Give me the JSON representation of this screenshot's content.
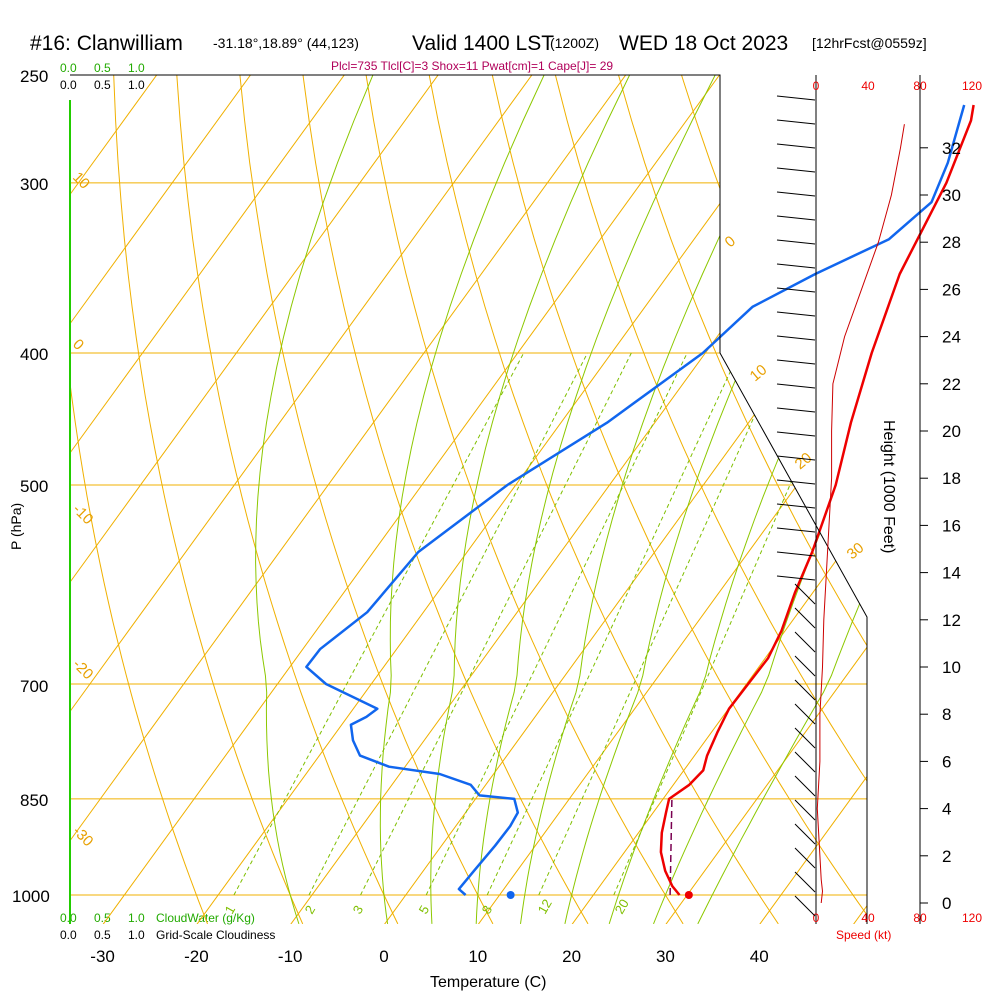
{
  "header": {
    "station": "#16: Clanwilliam",
    "coords": "-31.18°,18.89° (44,123)",
    "valid": "Valid 1400 LST",
    "zulu": "(1200Z)",
    "date": "WED 18 Oct 2023",
    "forecast": "[12hrFcst@0559z]"
  },
  "indices": "Plcl=735 Tlcl[C]=3 Shox=11 Pwat[cm]=1 Cape[J]= 29",
  "legends": {
    "cloudwater_top": [
      "0.0",
      "0.5",
      "1.0"
    ],
    "cloudiness_top": [
      "0.0",
      "0.5",
      "1.0"
    ],
    "cloudwater_bottom": [
      "0.0",
      "0.5",
      "1.0"
    ],
    "cloudwater_label": "CloudWater (g/Kg)",
    "cloudiness_bottom": [
      "0.0",
      "0.5",
      "1.0"
    ],
    "cloudiness_label": "Grid-Scale Cloudiness",
    "speed_label": "Speed (kt)"
  },
  "colors": {
    "isotherm": "#f0b000",
    "mixing": "#7fbf00",
    "adiabat": "#8cc800",
    "temperature": "#ee0000",
    "dewpoint": "#1166ee",
    "speed_line": "#cc0000",
    "parcel": "#7a0050"
  },
  "chart_data": {
    "type": "skew-t",
    "xlabel": "Temperature (C)",
    "ylabel": "P (hPa)",
    "y2label": "Height (1000 Feet)",
    "x_ticks": [
      "-30",
      "-20",
      "-10",
      "0",
      "10",
      "20",
      "30",
      "40"
    ],
    "y_ticks": [
      "250",
      "300",
      "400",
      "500",
      "700",
      "850",
      "1000"
    ],
    "height_ticks": [
      "0",
      "2",
      "4",
      "6",
      "8",
      "10",
      "12",
      "14",
      "16",
      "18",
      "20",
      "22",
      "24",
      "26",
      "28",
      "30",
      "32"
    ],
    "speed_ticks": [
      "0",
      "40",
      "80",
      "120"
    ],
    "isotherm_labels": [
      "0",
      "10",
      "20",
      "30"
    ],
    "left_labels": [
      "10",
      "0",
      "-10",
      "-20",
      "-30"
    ],
    "mixing_labels": [
      "1",
      "2",
      "3",
      "5",
      "8",
      "12",
      "20"
    ],
    "temperature_profile": [
      [
        1000,
        31.5
      ],
      [
        985,
        30.0
      ],
      [
        960,
        28.0
      ],
      [
        930,
        26.0
      ],
      [
        900,
        24.5
      ],
      [
        870,
        23.3
      ],
      [
        850,
        22.5
      ],
      [
        830,
        23.5
      ],
      [
        810,
        23.8
      ],
      [
        790,
        23.0
      ],
      [
        760,
        22.2
      ],
      [
        730,
        21.5
      ],
      [
        700,
        21.5
      ],
      [
        670,
        21.5
      ],
      [
        640,
        20.7
      ],
      [
        600,
        19.0
      ],
      [
        560,
        17.5
      ],
      [
        500,
        14.5
      ],
      [
        450,
        11.0
      ],
      [
        400,
        7.5
      ],
      [
        350,
        4.0
      ],
      [
        300,
        1.5
      ],
      [
        270,
        -1.0
      ],
      [
        263,
        -2.0
      ]
    ],
    "dewpoint_profile": [
      [
        1000,
        8.7
      ],
      [
        990,
        7.5
      ],
      [
        960,
        7.6
      ],
      [
        920,
        7.8
      ],
      [
        890,
        7.8
      ],
      [
        870,
        7.5
      ],
      [
        850,
        6.0
      ],
      [
        845,
        2.0
      ],
      [
        830,
        0.2
      ],
      [
        815,
        -4.0
      ],
      [
        805,
        -10.0
      ],
      [
        790,
        -14.0
      ],
      [
        770,
        -16.0
      ],
      [
        750,
        -17.5
      ],
      [
        740,
        -16.5
      ],
      [
        730,
        -16.0
      ],
      [
        700,
        -23.5
      ],
      [
        680,
        -27.0
      ],
      [
        660,
        -27.0
      ],
      [
        620,
        -25.0
      ],
      [
        560,
        -24.5
      ],
      [
        500,
        -20.5
      ],
      [
        450,
        -15.0
      ],
      [
        400,
        -10.5
      ],
      [
        370,
        -9.0
      ],
      [
        350,
        -5.0
      ],
      [
        330,
        0.0
      ],
      [
        310,
        1.5
      ],
      [
        290,
        0.0
      ],
      [
        263,
        -3.0
      ]
    ],
    "parcel_path": [
      [
        1000,
        30.5
      ],
      [
        850,
        22.8
      ]
    ],
    "surface_temperature": 32.5,
    "surface_dewpoint": 13.5,
    "wind_speed_profile_kt": [
      [
        0.0,
        4
      ],
      [
        0.5,
        5
      ],
      [
        1.0,
        4
      ],
      [
        2.0,
        3
      ],
      [
        3.0,
        2
      ],
      [
        4.0,
        1
      ],
      [
        5.0,
        2
      ],
      [
        6.0,
        3
      ],
      [
        7.0,
        3
      ],
      [
        8.0,
        3
      ],
      [
        9.0,
        4
      ],
      [
        10.0,
        5
      ],
      [
        12.0,
        6
      ],
      [
        14.0,
        8
      ],
      [
        16.0,
        10
      ],
      [
        18.0,
        12
      ],
      [
        20.0,
        12
      ],
      [
        22.0,
        13
      ],
      [
        24.0,
        22
      ],
      [
        26.0,
        35
      ],
      [
        28.0,
        48
      ],
      [
        30.0,
        58
      ],
      [
        32.0,
        65
      ],
      [
        33.0,
        68
      ]
    ]
  }
}
